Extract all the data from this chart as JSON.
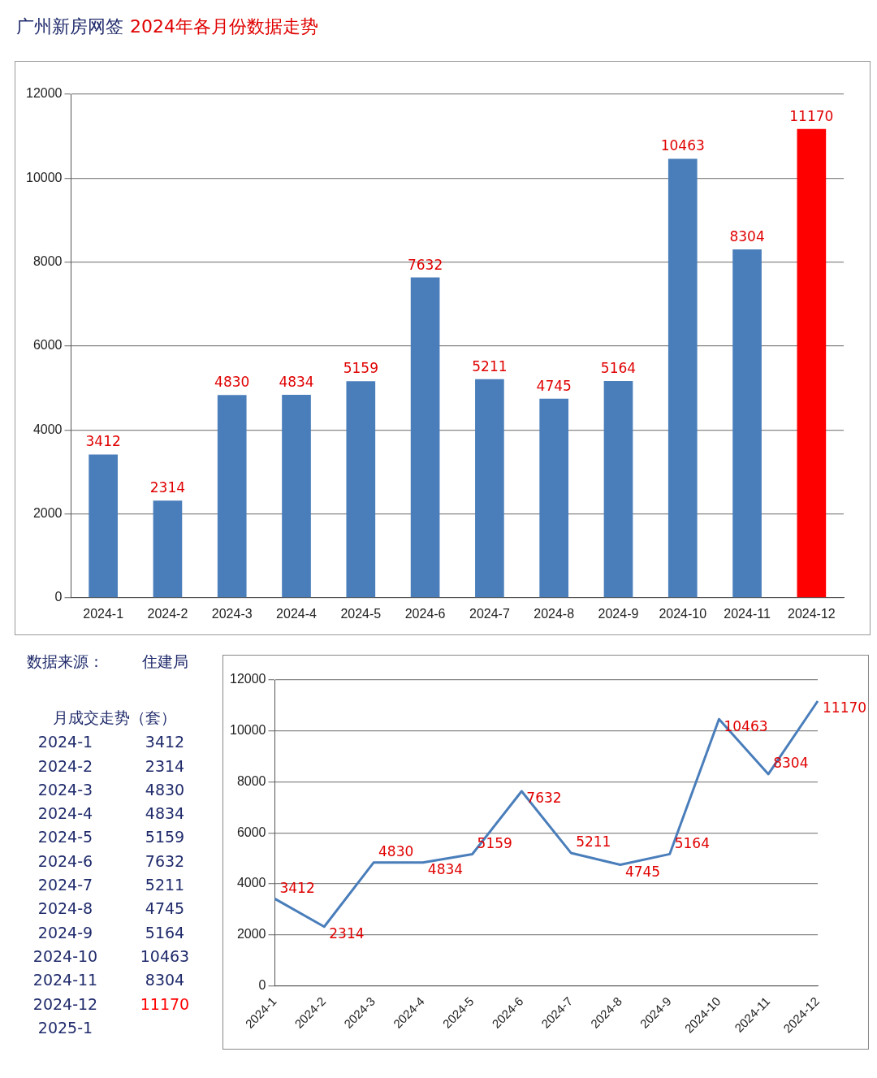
{
  "chart_data": [
    {
      "type": "bar",
      "title": "广州新房网签",
      "subtitle": "2024年各月份数据走势",
      "categories": [
        "2024-1",
        "2024-2",
        "2024-3",
        "2024-4",
        "2024-5",
        "2024-6",
        "2024-7",
        "2024-8",
        "2024-9",
        "2024-10",
        "2024-11",
        "2024-12"
      ],
      "values": [
        3412,
        2314,
        4830,
        4834,
        5159,
        7632,
        5211,
        4745,
        5164,
        10463,
        8304,
        11170
      ],
      "colors": [
        "#4a7ebb",
        "#4a7ebb",
        "#4a7ebb",
        "#4a7ebb",
        "#4a7ebb",
        "#4a7ebb",
        "#4a7ebb",
        "#4a7ebb",
        "#4a7ebb",
        "#4a7ebb",
        "#4a7ebb",
        "#ff0000"
      ],
      "ylim": [
        0,
        12000
      ],
      "yticks": [
        0,
        2000,
        4000,
        6000,
        8000,
        10000,
        12000
      ],
      "grid": "y",
      "data_labels": true
    },
    {
      "type": "line",
      "categories": [
        "2024-1",
        "2024-2",
        "2024-3",
        "2024-4",
        "2024-5",
        "2024-6",
        "2024-7",
        "2024-8",
        "2024-9",
        "2024-10",
        "2024-11",
        "2024-12"
      ],
      "values": [
        3412,
        2314,
        4830,
        4834,
        5159,
        7632,
        5211,
        4745,
        5164,
        10463,
        8304,
        11170
      ],
      "color": "#4a7ebb",
      "ylim": [
        0,
        12000
      ],
      "yticks": [
        0,
        2000,
        4000,
        6000,
        8000,
        10000,
        12000
      ],
      "grid": "y",
      "data_labels": true,
      "marker": "none"
    },
    {
      "type": "other",
      "data_labels": true,
      "title": "月成交走势（套）",
      "annotations": [
        "数据来源：",
        "住建局"
      ],
      "categories": [
        "2024-1",
        "2024-2",
        "2024-3",
        "2024-4",
        "2024-5",
        "2024-6",
        "2024-7",
        "2024-8",
        "2024-9",
        "2024-10",
        "2024-11",
        "2024-12",
        "2025-1"
      ],
      "values": [
        3412,
        2314,
        4830,
        4834,
        5159,
        7632,
        5211,
        4745,
        5164,
        10463,
        8304,
        11170,
        null
      ],
      "colors": [
        "#1f2a6b",
        "#1f2a6b",
        "#1f2a6b",
        "#1f2a6b",
        "#1f2a6b",
        "#1f2a6b",
        "#1f2a6b",
        "#1f2a6b",
        "#1f2a6b",
        "#1f2a6b",
        "#1f2a6b",
        "#ff0000",
        "#1f2a6b"
      ]
    }
  ]
}
